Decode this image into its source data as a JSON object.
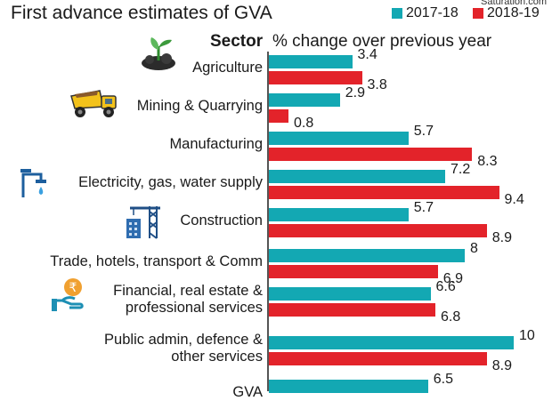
{
  "header": {
    "title": "First advance estimates of GVA",
    "credit": "Saturation.com",
    "column_sector": "Sector",
    "column_change": "% change over previous year"
  },
  "colors": {
    "series_2017": "#13a8b3",
    "series_2018": "#e3232a"
  },
  "icons": [
    "plant-icon",
    "dump-truck-icon",
    "",
    "water-tap-icon",
    "construction-crane-icon",
    "",
    "rupee-hand-icon",
    "",
    ""
  ],
  "chart_data": {
    "type": "bar",
    "orientation": "horizontal",
    "title": "First advance estimates of GVA",
    "ylabel": "Sector",
    "xlabel": "% change over previous year",
    "legend_position": "top-right",
    "categories": [
      [
        "Agriculture"
      ],
      [
        "Mining & Quarrying"
      ],
      [
        "Manufacturing"
      ],
      [
        "Electricity, gas, water supply"
      ],
      [
        "Construction"
      ],
      [
        "Trade, hotels, transport & Comm"
      ],
      [
        "Financial, real estate &",
        "professional services"
      ],
      [
        "Public admin, defence &",
        "other services"
      ],
      [
        "GVA"
      ]
    ],
    "series": [
      {
        "name": "2017-18",
        "values": [
          3.4,
          2.9,
          5.7,
          7.2,
          5.7,
          8,
          6.6,
          10,
          6.5
        ]
      },
      {
        "name": "2018-19",
        "values": [
          3.8,
          0.8,
          8.3,
          9.4,
          8.9,
          6.9,
          6.8,
          8.9,
          null
        ]
      }
    ],
    "value_labels": [
      [
        "3.4",
        "2.9",
        "5.7",
        "7.2",
        "5.7",
        "8",
        "6.6",
        "10",
        "6.5"
      ],
      [
        "3.8",
        "0.8",
        "8.3",
        "9.4",
        "8.9",
        "6.9",
        "6.8",
        "8.9",
        ""
      ]
    ],
    "xlim": [
      0,
      10
    ],
    "grid": false
  }
}
